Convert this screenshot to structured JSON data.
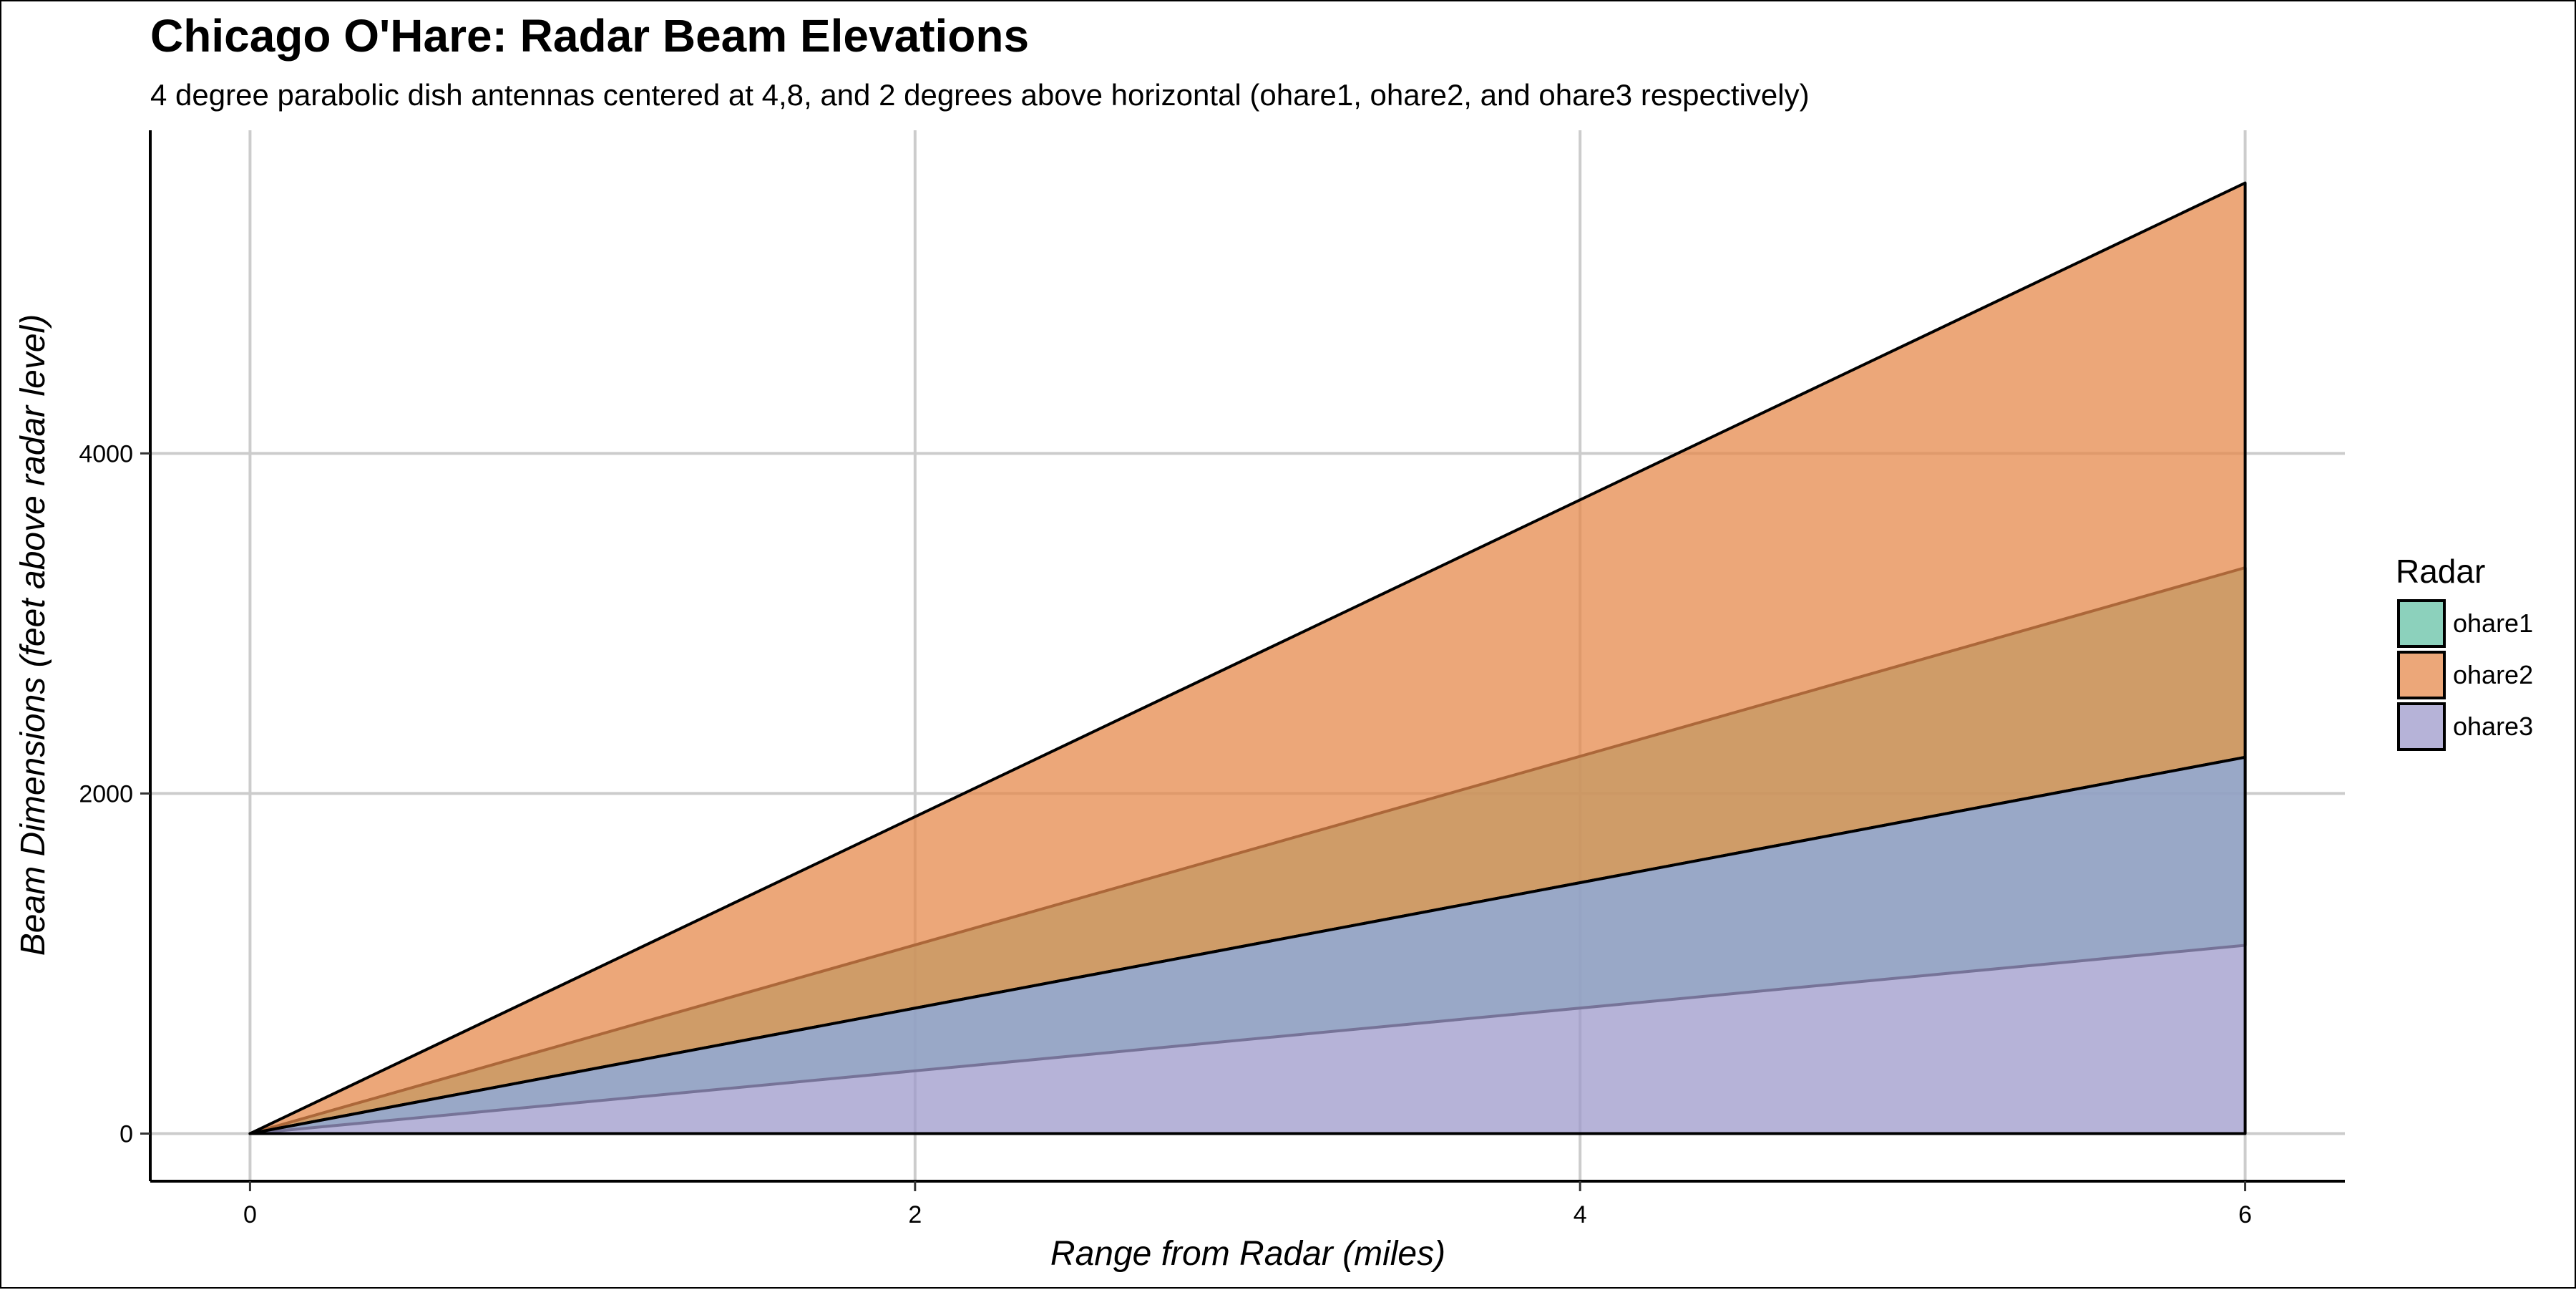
{
  "chart_data": {
    "type": "area",
    "title": "Chicago O'Hare: Radar Beam Elevations",
    "subtitle": "4 degree parabolic dish antennas centered at 4,8, and 2 degrees above horizontal (ohare1, ohare2, and ohare3 respectively)",
    "xlabel": "Range from Radar (miles)",
    "ylabel": "Beam Dimensions (feet above radar level)",
    "xlim": [
      -0.3,
      6.3
    ],
    "ylim": [
      -280,
      5900
    ],
    "x_ticks": [
      0,
      2,
      4,
      6
    ],
    "y_ticks": [
      0,
      2000,
      4000
    ],
    "grid": true,
    "legend": {
      "title": "Radar",
      "position": "right"
    },
    "series": [
      {
        "name": "ohare1",
        "color": "#66C2A5",
        "x": [
          0,
          6
        ],
        "lower": [
          0,
          1107
        ],
        "upper": [
          0,
          3328
        ]
      },
      {
        "name": "ohare2",
        "color": "#E5894C",
        "x": [
          0,
          6
        ],
        "lower": [
          0,
          2213
        ],
        "upper": [
          0,
          5590
        ]
      },
      {
        "name": "ohare3",
        "color": "#9E9ACB",
        "x": [
          0,
          6
        ],
        "lower": [
          0,
          0
        ],
        "upper": [
          0,
          2213
        ]
      }
    ]
  }
}
